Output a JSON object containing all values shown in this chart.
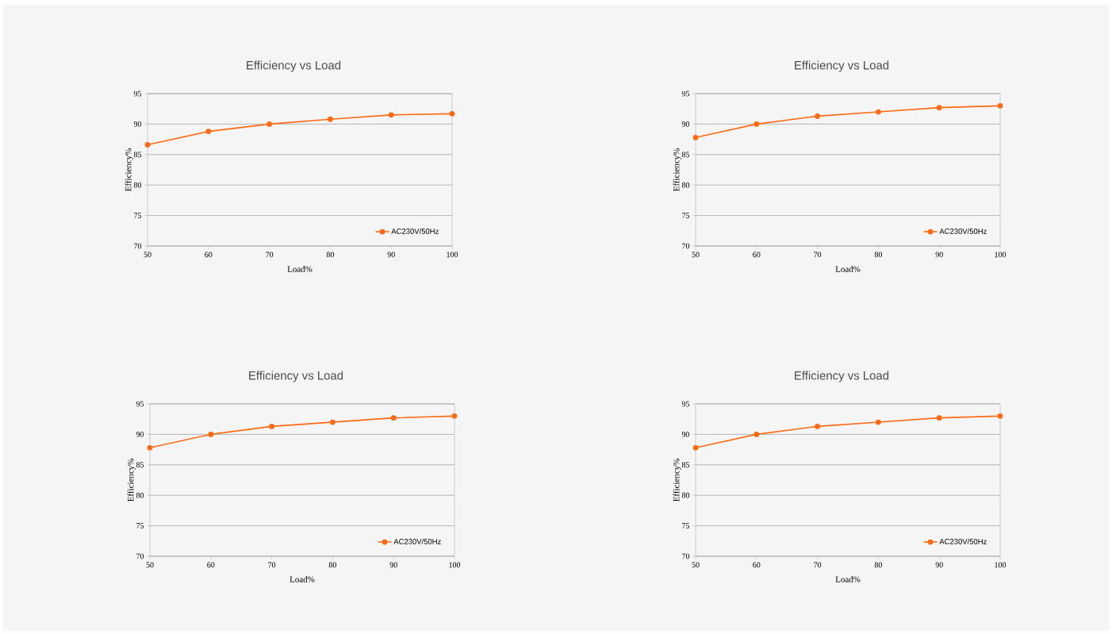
{
  "chart_data": [
    {
      "type": "line",
      "title": "Efficiency vs Load",
      "xlabel": "Load%",
      "ylabel": "Efficiency%",
      "x": [
        50,
        60,
        70,
        80,
        90,
        100
      ],
      "xlim": [
        50,
        100
      ],
      "xticks": [
        50,
        60,
        70,
        80,
        90,
        100
      ],
      "ylim": [
        70,
        95
      ],
      "yticks": [
        70,
        75,
        80,
        85,
        90,
        95
      ],
      "grid": "y",
      "legend": "bottom right",
      "marker": "circle",
      "series": [
        {
          "name": "AC230V/50Hz",
          "color": "#ff6a13",
          "values": [
            86.6,
            88.8,
            90.0,
            90.8,
            91.5,
            91.7
          ]
        }
      ]
    },
    {
      "type": "line",
      "title": "Efficiency vs Load",
      "xlabel": "Load%",
      "ylabel": "Efficiency%",
      "x": [
        50,
        60,
        70,
        80,
        90,
        100
      ],
      "xlim": [
        50,
        100
      ],
      "xticks": [
        50,
        60,
        70,
        80,
        90,
        100
      ],
      "ylim": [
        70,
        95
      ],
      "yticks": [
        70,
        75,
        80,
        85,
        90,
        95
      ],
      "grid": "y",
      "legend": "bottom right",
      "marker": "circle",
      "series": [
        {
          "name": "AC230V/50Hz",
          "color": "#ff6a13",
          "values": [
            87.8,
            90.0,
            91.3,
            92.0,
            92.7,
            93.0
          ]
        }
      ]
    },
    {
      "type": "line",
      "title": "Efficiency vs Load",
      "xlabel": "Load%",
      "ylabel": "Efficiency%",
      "x": [
        50,
        60,
        70,
        80,
        90,
        100
      ],
      "xlim": [
        50,
        100
      ],
      "xticks": [
        50,
        60,
        70,
        80,
        90,
        100
      ],
      "ylim": [
        70,
        95
      ],
      "yticks": [
        70,
        75,
        80,
        85,
        90,
        95
      ],
      "grid": "y",
      "legend": "bottom right",
      "marker": "circle",
      "series": [
        {
          "name": "AC230V/50Hz",
          "color": "#ff6a13",
          "values": [
            87.8,
            90.0,
            91.3,
            92.0,
            92.7,
            93.0
          ]
        }
      ]
    },
    {
      "type": "line",
      "title": "Efficiency vs Load",
      "xlabel": "Load%",
      "ylabel": "Efficiency%",
      "x": [
        50,
        60,
        70,
        80,
        90,
        100
      ],
      "xlim": [
        50,
        100
      ],
      "xticks": [
        50,
        60,
        70,
        80,
        90,
        100
      ],
      "ylim": [
        70,
        95
      ],
      "yticks": [
        70,
        75,
        80,
        85,
        90,
        95
      ],
      "grid": "y",
      "legend": "bottom right",
      "marker": "circle",
      "series": [
        {
          "name": "AC230V/50Hz",
          "color": "#ff6a13",
          "values": [
            87.8,
            90.0,
            91.3,
            92.0,
            92.7,
            93.0
          ]
        }
      ]
    }
  ]
}
